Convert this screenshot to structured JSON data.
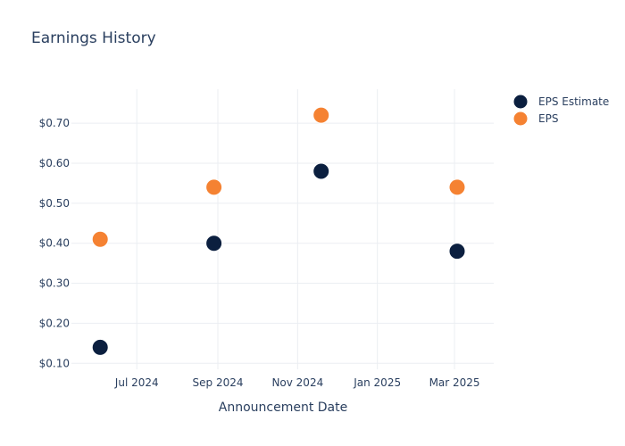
{
  "chart_data": {
    "type": "scatter",
    "title": "Earnings History",
    "xlabel": "Announcement Date",
    "ylabel": "",
    "x_ticks": [
      "Jul 2024",
      "Sep 2024",
      "Nov 2024",
      "Jan 2025",
      "Mar 2025"
    ],
    "y_ticks": [
      "$0.10",
      "$0.20",
      "$0.30",
      "$0.40",
      "$0.50",
      "$0.60",
      "$0.70"
    ],
    "ylim": [
      0.085,
      0.785
    ],
    "xlim": [
      "2024-05-12",
      "2025-03-31"
    ],
    "grid": true,
    "legend_position": "top-right",
    "series": [
      {
        "name": "EPS Estimate",
        "color": "#0b1f3f",
        "points": [
          {
            "x": "2024-06-03",
            "y": 0.14
          },
          {
            "x": "2024-08-29",
            "y": 0.4
          },
          {
            "x": "2024-11-19",
            "y": 0.58
          },
          {
            "x": "2025-03-03",
            "y": 0.38
          }
        ]
      },
      {
        "name": "EPS",
        "color": "#f58232",
        "points": [
          {
            "x": "2024-06-03",
            "y": 0.41
          },
          {
            "x": "2024-08-29",
            "y": 0.54
          },
          {
            "x": "2024-11-19",
            "y": 0.72
          },
          {
            "x": "2025-03-03",
            "y": 0.54
          }
        ]
      }
    ]
  }
}
